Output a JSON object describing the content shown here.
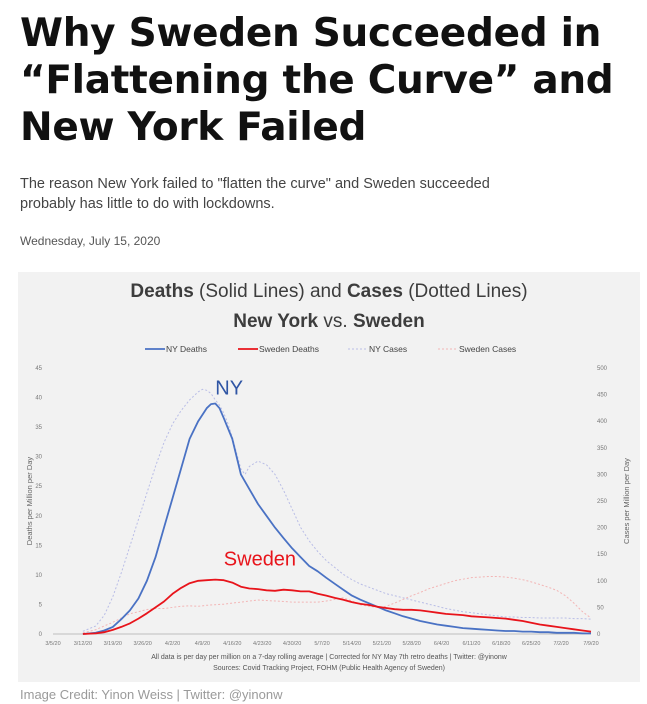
{
  "article": {
    "headline_lines": [
      "Why Sweden Succeeded in",
      "“Flattening the Curve” and",
      "New York Failed"
    ],
    "deck_lines": [
      "The reason New York failed to \"flatten the curve\" and Sweden succeeded",
      "probably has little to do with lockdowns."
    ],
    "date": "Wednesday, July 15, 2020",
    "image_credit": "Image Credit: Yinon Weiss | Twitter: @yinonw"
  },
  "chart_data": {
    "type": "line",
    "title_line1_parts": [
      {
        "text": "Deaths",
        "bold": true
      },
      {
        "text": " (Solid Lines) and ",
        "bold": false
      },
      {
        "text": "Cases",
        "bold": true
      },
      {
        "text": " (Dotted Lines)",
        "bold": false
      }
    ],
    "title_line2_parts": [
      {
        "text": "New York",
        "bold": true
      },
      {
        "text": " vs. ",
        "bold": false
      },
      {
        "text": "Sweden",
        "bold": true
      }
    ],
    "ylabel_left": "Deaths per Million per Day",
    "ylabel_right": "Cases per Million per Day",
    "ylim_left": [
      0,
      45
    ],
    "ylim_right": [
      0,
      500
    ],
    "y_ticks_left": [
      "0",
      "5",
      "10",
      "15",
      "20",
      "25",
      "30",
      "35",
      "40",
      "45"
    ],
    "y_ticks_right": [
      "0",
      "50",
      "100",
      "150",
      "200",
      "250",
      "300",
      "350",
      "400",
      "450",
      "500"
    ],
    "x_ticks": [
      "3/5/20",
      "3/12/20",
      "3/19/20",
      "3/26/20",
      "4/2/20",
      "4/9/20",
      "4/16/20",
      "4/23/20",
      "4/30/20",
      "5/7/20",
      "5/14/20",
      "5/21/20",
      "5/28/20",
      "6/4/20",
      "6/11/20",
      "6/18/20",
      "6/25/20",
      "7/2/20",
      "7/9/20"
    ],
    "annotations": [
      {
        "text": "NY",
        "color": "#2f55a4",
        "x": 38,
        "y": 40.5
      },
      {
        "text": "Sweden",
        "color": "#e8141b",
        "x": 40,
        "y": 11.6
      }
    ],
    "footnote_lines": [
      "All data is per day per million on a 7-day rolling average | Corrected for NY May 7th retro deaths | Twitter: @yinonw",
      "Sources: Covid Tracking Project, FOHM (Public Health Agency of Sweden)"
    ],
    "legend_position": "top",
    "grid": false,
    "series": [
      {
        "name": "NY Deaths",
        "axis": "left",
        "style": "solid",
        "color": "#4a72c4",
        "points": [
          [
            7,
            0
          ],
          [
            10,
            0.2
          ],
          [
            12,
            0.6
          ],
          [
            14,
            1.2
          ],
          [
            16,
            2.5
          ],
          [
            18,
            4
          ],
          [
            20,
            6
          ],
          [
            22,
            9
          ],
          [
            24,
            13
          ],
          [
            26,
            18
          ],
          [
            28,
            23
          ],
          [
            30,
            28
          ],
          [
            32,
            33
          ],
          [
            34,
            36
          ],
          [
            36,
            38.2
          ],
          [
            37,
            38.9
          ],
          [
            38,
            39
          ],
          [
            39,
            38.2
          ],
          [
            40,
            36.5
          ],
          [
            42,
            33
          ],
          [
            43,
            30
          ],
          [
            44,
            27
          ],
          [
            46,
            24.5
          ],
          [
            48,
            22
          ],
          [
            50,
            20
          ],
          [
            52,
            18
          ],
          [
            54,
            16.2
          ],
          [
            56,
            14.5
          ],
          [
            58,
            13
          ],
          [
            60,
            11.5
          ],
          [
            62,
            10.6
          ],
          [
            64,
            9.5
          ],
          [
            66,
            8.5
          ],
          [
            68,
            7.5
          ],
          [
            70,
            6.5
          ],
          [
            72,
            5.8
          ],
          [
            74,
            5.2
          ],
          [
            76,
            4.6
          ],
          [
            78,
            4
          ],
          [
            80,
            3.5
          ],
          [
            82,
            3
          ],
          [
            84,
            2.6
          ],
          [
            86,
            2.2
          ],
          [
            88,
            1.9
          ],
          [
            90,
            1.6
          ],
          [
            92,
            1.4
          ],
          [
            94,
            1.2
          ],
          [
            96,
            1
          ],
          [
            98,
            0.9
          ],
          [
            100,
            0.8
          ],
          [
            102,
            0.7
          ],
          [
            104,
            0.6
          ],
          [
            106,
            0.5
          ],
          [
            108,
            0.5
          ],
          [
            110,
            0.4
          ],
          [
            112,
            0.4
          ],
          [
            114,
            0.3
          ],
          [
            116,
            0.3
          ],
          [
            118,
            0.2
          ],
          [
            120,
            0.2
          ],
          [
            122,
            0.2
          ],
          [
            124,
            0.1
          ],
          [
            126,
            0.1
          ]
        ]
      },
      {
        "name": "Sweden Deaths",
        "axis": "left",
        "style": "solid",
        "color": "#e8141b",
        "points": [
          [
            7,
            0
          ],
          [
            10,
            0.1
          ],
          [
            12,
            0.3
          ],
          [
            14,
            0.7
          ],
          [
            16,
            1.2
          ],
          [
            18,
            1.8
          ],
          [
            20,
            2.6
          ],
          [
            22,
            3.5
          ],
          [
            24,
            4.5
          ],
          [
            26,
            5.5
          ],
          [
            28,
            6.8
          ],
          [
            30,
            7.8
          ],
          [
            32,
            8.6
          ],
          [
            34,
            9
          ],
          [
            36,
            9.1
          ],
          [
            38,
            9.2
          ],
          [
            40,
            9.1
          ],
          [
            42,
            8.7
          ],
          [
            44,
            8
          ],
          [
            46,
            7.7
          ],
          [
            48,
            7.6
          ],
          [
            50,
            7.4
          ],
          [
            52,
            7.3
          ],
          [
            54,
            7.5
          ],
          [
            56,
            7.4
          ],
          [
            58,
            7.2
          ],
          [
            60,
            7.2
          ],
          [
            62,
            6.8
          ],
          [
            64,
            6.5
          ],
          [
            66,
            6.1
          ],
          [
            68,
            5.8
          ],
          [
            70,
            5.4
          ],
          [
            72,
            5.1
          ],
          [
            74,
            4.9
          ],
          [
            76,
            4.6
          ],
          [
            78,
            4.4
          ],
          [
            80,
            4.2
          ],
          [
            82,
            4.1
          ],
          [
            84,
            4.1
          ],
          [
            86,
            4
          ],
          [
            88,
            3.8
          ],
          [
            90,
            3.6
          ],
          [
            92,
            3.4
          ],
          [
            94,
            3.3
          ],
          [
            96,
            3.2
          ],
          [
            98,
            3
          ],
          [
            100,
            2.9
          ],
          [
            102,
            2.8
          ],
          [
            104,
            2.7
          ],
          [
            106,
            2.6
          ],
          [
            108,
            2.4
          ],
          [
            110,
            2.2
          ],
          [
            112,
            1.9
          ],
          [
            114,
            1.6
          ],
          [
            116,
            1.4
          ],
          [
            118,
            1.2
          ],
          [
            120,
            1
          ],
          [
            122,
            0.8
          ],
          [
            124,
            0.6
          ],
          [
            126,
            0.4
          ]
        ]
      },
      {
        "name": "NY Cases",
        "axis": "right",
        "style": "dotted",
        "color": "#b9bde6",
        "points": [
          [
            7,
            5
          ],
          [
            10,
            15
          ],
          [
            12,
            35
          ],
          [
            14,
            70
          ],
          [
            16,
            115
          ],
          [
            18,
            165
          ],
          [
            20,
            215
          ],
          [
            22,
            265
          ],
          [
            24,
            315
          ],
          [
            26,
            360
          ],
          [
            28,
            395
          ],
          [
            30,
            420
          ],
          [
            32,
            440
          ],
          [
            34,
            455
          ],
          [
            35,
            460
          ],
          [
            36,
            458
          ],
          [
            37,
            452
          ],
          [
            38,
            440
          ],
          [
            39,
            430
          ],
          [
            40,
            415
          ],
          [
            41,
            395
          ],
          [
            42,
            370
          ],
          [
            43,
            340
          ],
          [
            44,
            310
          ],
          [
            45,
            300
          ],
          [
            46,
            315
          ],
          [
            48,
            325
          ],
          [
            50,
            318
          ],
          [
            52,
            300
          ],
          [
            54,
            270
          ],
          [
            56,
            235
          ],
          [
            58,
            200
          ],
          [
            60,
            175
          ],
          [
            62,
            155
          ],
          [
            64,
            138
          ],
          [
            66,
            125
          ],
          [
            68,
            112
          ],
          [
            70,
            102
          ],
          [
            72,
            94
          ],
          [
            74,
            88
          ],
          [
            76,
            82
          ],
          [
            78,
            76
          ],
          [
            80,
            72
          ],
          [
            82,
            68
          ],
          [
            84,
            64
          ],
          [
            86,
            60
          ],
          [
            88,
            56
          ],
          [
            90,
            52
          ],
          [
            92,
            48
          ],
          [
            94,
            45
          ],
          [
            96,
            42
          ],
          [
            98,
            40
          ],
          [
            100,
            38
          ],
          [
            102,
            36
          ],
          [
            104,
            34
          ],
          [
            106,
            32
          ],
          [
            108,
            32
          ],
          [
            110,
            31
          ],
          [
            112,
            31
          ],
          [
            114,
            30
          ],
          [
            116,
            30
          ],
          [
            118,
            30
          ],
          [
            120,
            30
          ],
          [
            122,
            29
          ],
          [
            124,
            29
          ],
          [
            126,
            28
          ]
        ]
      },
      {
        "name": "Sweden Cases",
        "axis": "right",
        "style": "dotted",
        "color": "#f3b5b5",
        "points": [
          [
            7,
            2
          ],
          [
            10,
            8
          ],
          [
            12,
            15
          ],
          [
            14,
            22
          ],
          [
            16,
            30
          ],
          [
            18,
            38
          ],
          [
            20,
            42
          ],
          [
            22,
            46
          ],
          [
            24,
            48
          ],
          [
            26,
            48
          ],
          [
            28,
            50
          ],
          [
            30,
            52
          ],
          [
            32,
            53
          ],
          [
            34,
            52
          ],
          [
            36,
            54
          ],
          [
            38,
            55
          ],
          [
            40,
            56
          ],
          [
            42,
            58
          ],
          [
            44,
            60
          ],
          [
            46,
            62
          ],
          [
            48,
            64
          ],
          [
            50,
            63
          ],
          [
            52,
            62
          ],
          [
            54,
            61
          ],
          [
            56,
            60
          ],
          [
            58,
            60
          ],
          [
            60,
            60
          ],
          [
            62,
            60
          ],
          [
            64,
            62
          ],
          [
            66,
            65
          ],
          [
            68,
            68
          ],
          [
            70,
            62
          ],
          [
            72,
            55
          ],
          [
            74,
            52
          ],
          [
            76,
            50
          ],
          [
            78,
            52
          ],
          [
            80,
            58
          ],
          [
            82,
            65
          ],
          [
            84,
            72
          ],
          [
            86,
            78
          ],
          [
            88,
            85
          ],
          [
            90,
            90
          ],
          [
            92,
            95
          ],
          [
            94,
            100
          ],
          [
            96,
            103
          ],
          [
            98,
            106
          ],
          [
            100,
            107
          ],
          [
            102,
            108
          ],
          [
            104,
            108
          ],
          [
            106,
            107
          ],
          [
            108,
            105
          ],
          [
            110,
            102
          ],
          [
            112,
            98
          ],
          [
            114,
            93
          ],
          [
            116,
            88
          ],
          [
            118,
            82
          ],
          [
            120,
            72
          ],
          [
            122,
            58
          ],
          [
            124,
            42
          ],
          [
            126,
            30
          ]
        ]
      }
    ]
  }
}
